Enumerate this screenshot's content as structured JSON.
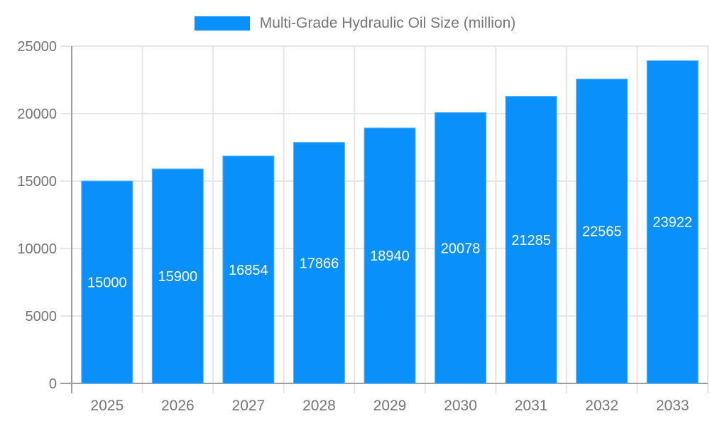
{
  "legend": {
    "label": "Multi-Grade Hydraulic Oil Size (million)"
  },
  "colors": {
    "bar": "#0a90fa",
    "bar_edge": "#5eb2fb",
    "bar_label": "#ffffff",
    "axis_line": "#9e9e9e",
    "gridline": "#e6e6e6",
    "axis_label": "#757575",
    "legend_text": "#757575",
    "background": "#ffffff"
  },
  "chart_data": {
    "type": "bar",
    "title": "Multi-Grade Hydraulic Oil Size (million)",
    "categories": [
      "2025",
      "2026",
      "2027",
      "2028",
      "2029",
      "2030",
      "2031",
      "2032",
      "2033"
    ],
    "values": [
      15000,
      15900,
      16854,
      17866,
      18940,
      20078,
      21285,
      22565,
      23922
    ],
    "xlabel": "",
    "ylabel": "",
    "ylim": [
      0,
      25000
    ],
    "ytick_step": 5000,
    "yticks": [
      "0",
      "5000",
      "10000",
      "15000",
      "20000",
      "25000"
    ],
    "grid": true,
    "legend_position": "top",
    "bar_label_position": "center"
  }
}
